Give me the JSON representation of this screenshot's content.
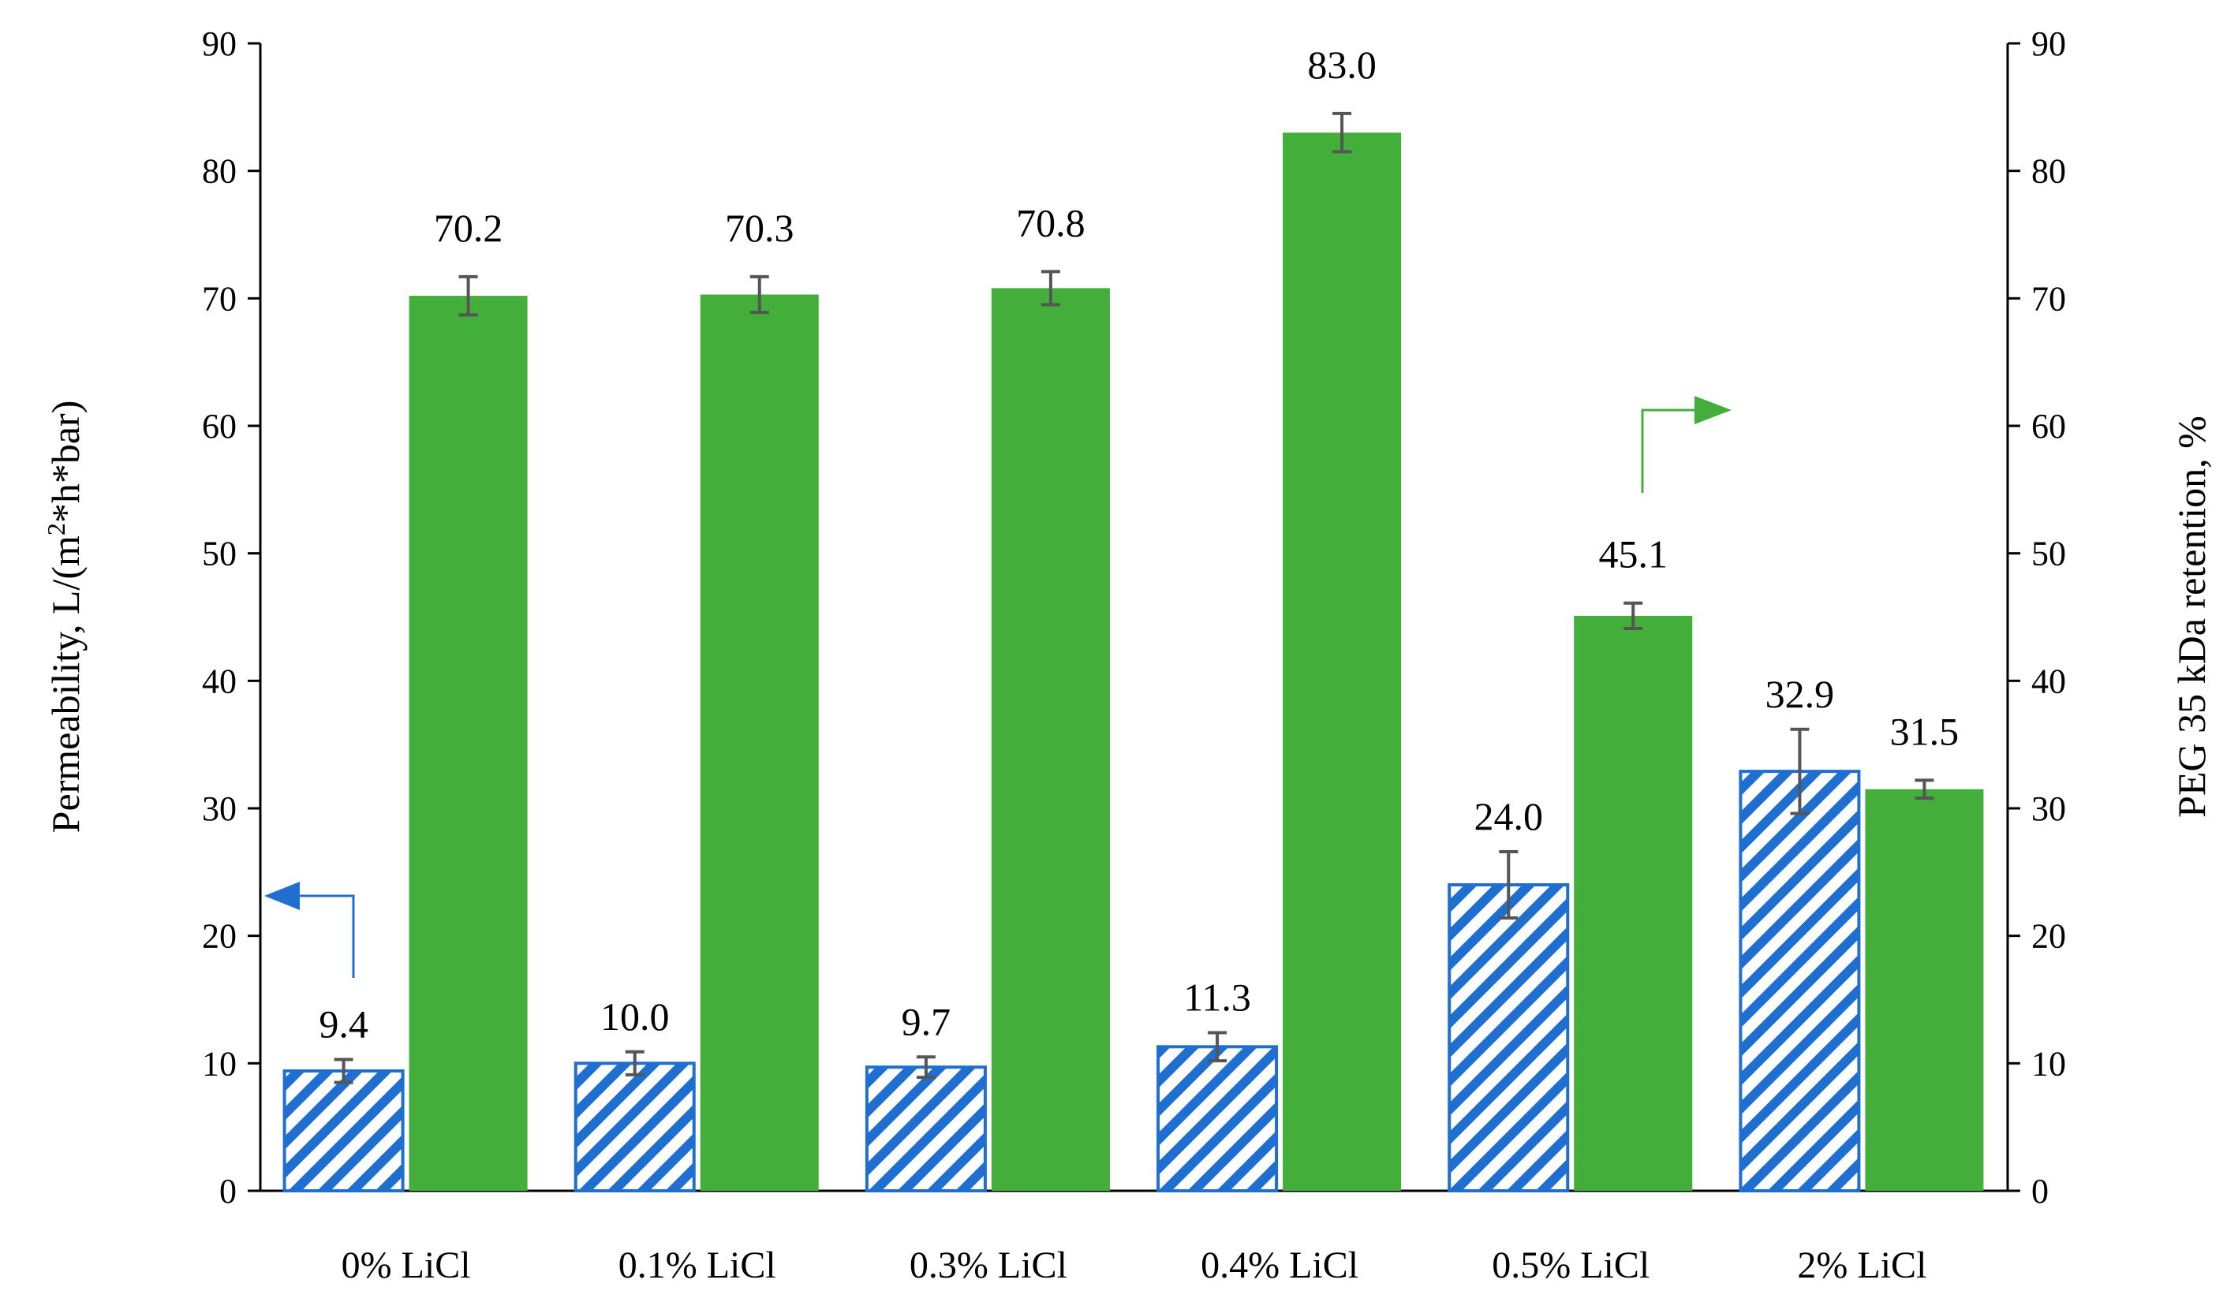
{
  "chart_data": {
    "type": "bar",
    "categories": [
      "0% LiCl",
      "0.1% LiCl",
      "0.3% LiCl",
      "0.4% LiCl",
      "0.5% LiCl",
      "2% LiCl"
    ],
    "series": [
      {
        "name": "Permeability",
        "axis": "left",
        "style": "hatched",
        "color": "#1f6fd1",
        "values": [
          9.4,
          10.0,
          9.7,
          11.3,
          24.0,
          32.9
        ],
        "errors": [
          0.9,
          0.9,
          0.8,
          1.1,
          2.6,
          3.3
        ],
        "labels": [
          "9.4",
          "10.0",
          "9.7",
          "11.3",
          "24.0",
          "32.9"
        ]
      },
      {
        "name": "PEG 35 kDa retention",
        "axis": "right",
        "style": "solid",
        "color": "#44ae3a",
        "values": [
          70.2,
          70.3,
          70.8,
          83.0,
          45.1,
          31.5
        ],
        "errors": [
          1.5,
          1.4,
          1.3,
          1.5,
          1.0,
          0.7
        ],
        "labels": [
          "70.2",
          "70.3",
          "70.8",
          "83.0",
          "45.1",
          "31.5"
        ]
      }
    ],
    "ylabel": "Permeability, L/(m²*h*bar)",
    "ylabel_parts": [
      "Permeability, L/(m",
      "2",
      "*h*bar)"
    ],
    "y2label": "PEG 35 kDa retention, %",
    "ylim": [
      0,
      90
    ],
    "y2lim": [
      0,
      90
    ],
    "yticks": [
      0,
      10,
      20,
      30,
      40,
      50,
      60,
      70,
      80,
      90
    ],
    "tick_labels": [
      "0",
      "10",
      "20",
      "30",
      "40",
      "50",
      "60",
      "70",
      "80",
      "90"
    ],
    "error_color": "#555555"
  }
}
